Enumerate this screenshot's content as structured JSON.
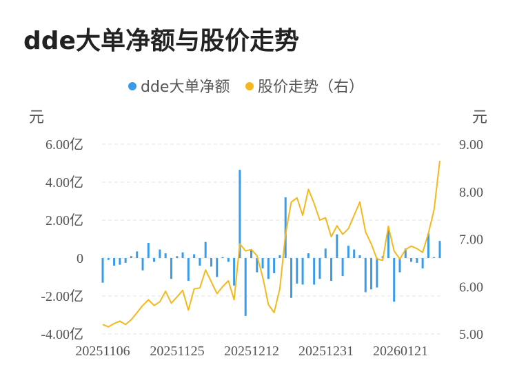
{
  "title": "dde大单净额与股价走势",
  "colors": {
    "bar": "#3a9be8",
    "line": "#f5b81c",
    "grid": "#e3e3e3",
    "text": "#555555",
    "title": "#222222"
  },
  "chart_data": {
    "type": "bar+line",
    "legend": {
      "position": "top-center",
      "items": [
        "dde大单净额",
        "股价走势（右）"
      ]
    },
    "y_left": {
      "unit": "元",
      "ticks": [
        "6.00亿",
        "4.00亿",
        "2.00亿",
        "0",
        "-2.00亿",
        "-4.00亿"
      ],
      "range": [
        -4,
        6
      ]
    },
    "y_right": {
      "unit": "元",
      "ticks": [
        "9.00",
        "8.00",
        "7.00",
        "6.00",
        "5.00"
      ],
      "range": [
        5,
        9
      ]
    },
    "x_tick_labels": [
      "20251106",
      "20251125",
      "20251212",
      "20251231",
      "20260121"
    ],
    "grid": true,
    "series": [
      {
        "name": "dde大单净额",
        "type": "bar",
        "axis": "left",
        "unit": "亿",
        "values": [
          -1.3,
          -0.1,
          -0.4,
          -0.35,
          -0.25,
          0.1,
          0.35,
          -0.65,
          0.8,
          -0.2,
          0.45,
          0.25,
          -1.1,
          0.1,
          0.3,
          -1.2,
          0.2,
          -0.4,
          0.85,
          -0.45,
          -1.0,
          0.05,
          -0.2,
          -1.45,
          4.65,
          -3.05,
          0.4,
          -0.75,
          -0.55,
          -1.1,
          -0.8,
          0.15,
          3.2,
          -2.1,
          -1.35,
          -1.4,
          0.25,
          -1.4,
          -1.1,
          0.5,
          -1.2,
          1.25,
          -0.95,
          0.65,
          0.45,
          0.15,
          -1.8,
          -1.65,
          -1.55,
          0.1,
          1.5,
          -2.3,
          -0.75,
          0.5,
          -0.2,
          -0.25,
          -0.55,
          1.3,
          0.05,
          0.9
        ]
      },
      {
        "name": "股价走势（右）",
        "type": "line",
        "axis": "right",
        "values": [
          5.2,
          5.15,
          5.22,
          5.27,
          5.2,
          5.3,
          5.45,
          5.6,
          5.72,
          5.6,
          5.68,
          5.9,
          5.65,
          5.78,
          5.92,
          5.5,
          5.95,
          5.97,
          6.35,
          6.1,
          5.85,
          6.0,
          6.12,
          5.72,
          6.9,
          6.75,
          6.78,
          6.65,
          6.2,
          5.62,
          5.45,
          5.95,
          7.1,
          7.78,
          7.87,
          7.5,
          8.05,
          7.75,
          7.4,
          7.45,
          7.05,
          7.28,
          7.1,
          7.22,
          7.5,
          7.78,
          7.15,
          6.9,
          6.58,
          6.55,
          7.27,
          6.75,
          6.58,
          6.78,
          6.85,
          6.8,
          6.72,
          7.12,
          7.62,
          8.65
        ]
      }
    ]
  }
}
